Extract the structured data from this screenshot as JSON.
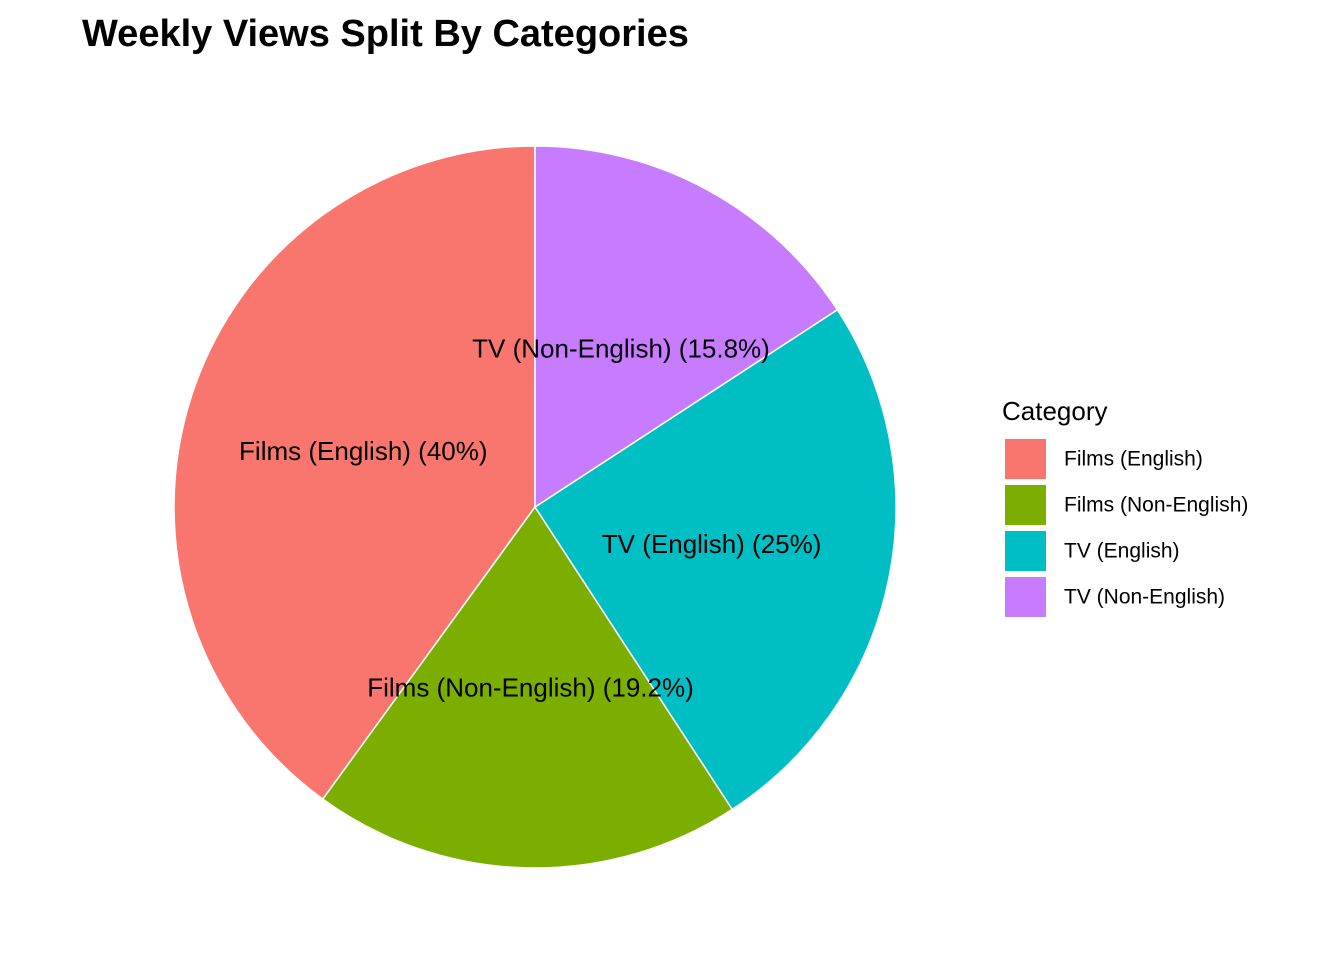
{
  "chart_data": {
    "type": "pie",
    "title": "Weekly Views Split By Categories",
    "legend_title": "Category",
    "legend_position": "right",
    "start": "12 o'clock",
    "direction": "counter-clockwise",
    "slices": [
      {
        "name": "Films (English)",
        "value": 40,
        "label": "Films (English) (40%)",
        "color": "#F8766D"
      },
      {
        "name": "Films (Non-English)",
        "value": 19.2,
        "label": "Films (Non-English) (19.2%)",
        "color": "#7CAE00"
      },
      {
        "name": "TV (English)",
        "value": 25,
        "label": "TV (English) (25%)",
        "color": "#00BFC4"
      },
      {
        "name": "TV (Non-English)",
        "value": 15.8,
        "label": "TV (Non-English) (15.8%)",
        "color": "#C77CFF"
      }
    ]
  }
}
